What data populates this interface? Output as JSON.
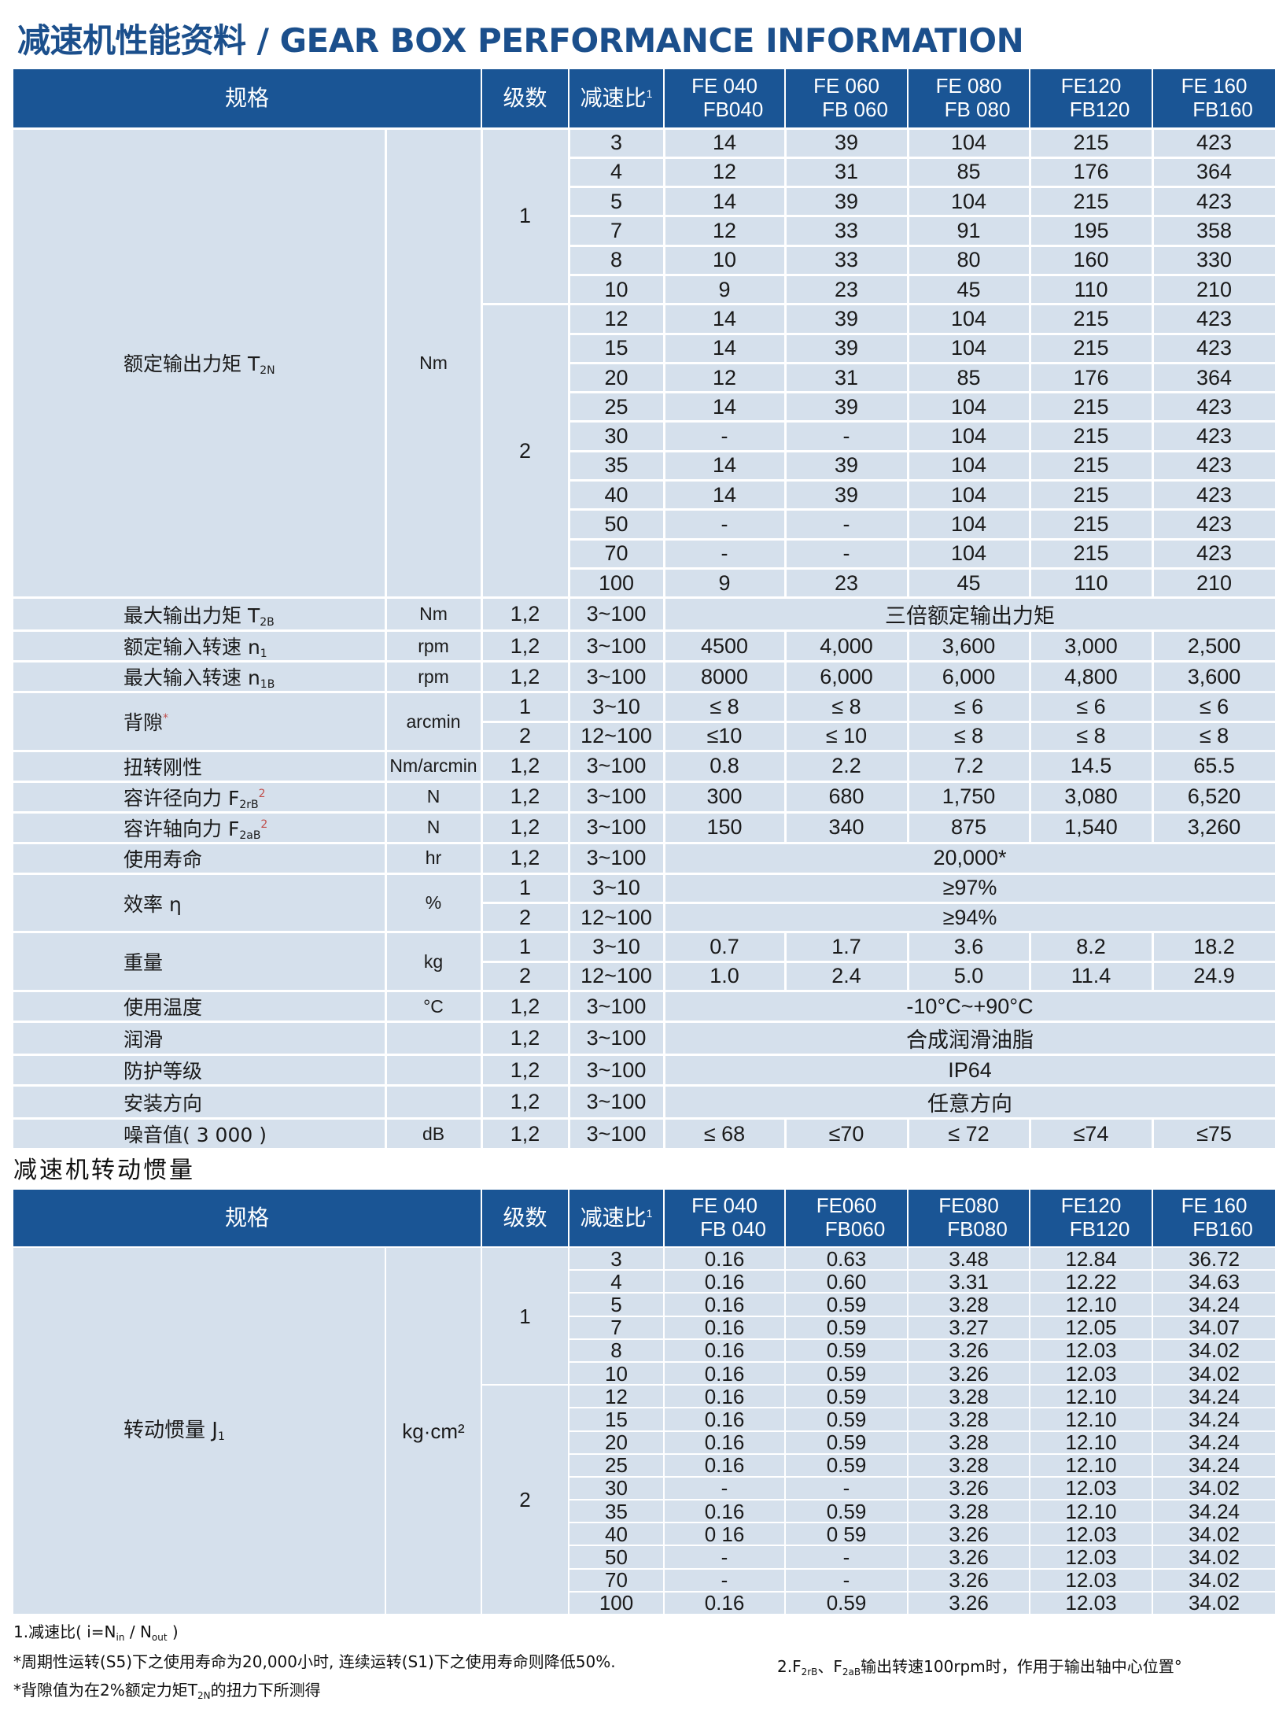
{
  "title": "减速机性能资料 / GEAR BOX PERFORMANCE INFORMATION",
  "colors": {
    "header_bg": "#1a5595",
    "cell_bg": "#d5e0ec",
    "title": "#1b4f8c",
    "stage_divider": "#d0343a"
  },
  "table1": {
    "headers": {
      "spec": "规格",
      "stage": "级数",
      "ratio": "减速比",
      "ratio_sup": "1",
      "models": [
        [
          "FE 040",
          "FB040"
        ],
        [
          "FE 060",
          "FB 060"
        ],
        [
          "FE 080",
          "FB 080"
        ],
        [
          "FE120",
          "FB120"
        ],
        [
          "FE 160",
          "FB160"
        ]
      ]
    },
    "torque": {
      "label": "额定输出力矩 T",
      "sub": "2N",
      "unit": "Nm",
      "stages": [
        {
          "stage": "1",
          "rows": [
            {
              "ratio": "3",
              "values": [
                "14",
                "39",
                "104",
                "215",
                "423"
              ]
            },
            {
              "ratio": "4",
              "values": [
                "12",
                "31",
                "85",
                "176",
                "364"
              ]
            },
            {
              "ratio": "5",
              "values": [
                "14",
                "39",
                "104",
                "215",
                "423"
              ]
            },
            {
              "ratio": "7",
              "values": [
                "12",
                "33",
                "91",
                "195",
                "358"
              ]
            },
            {
              "ratio": "8",
              "values": [
                "10",
                "33",
                "80",
                "160",
                "330"
              ]
            },
            {
              "ratio": "10",
              "values": [
                "9",
                "23",
                "45",
                "110",
                "210"
              ]
            }
          ]
        },
        {
          "stage": "2",
          "rows": [
            {
              "ratio": "12",
              "values": [
                "14",
                "39",
                "104",
                "215",
                "423"
              ]
            },
            {
              "ratio": "15",
              "values": [
                "14",
                "39",
                "104",
                "215",
                "423"
              ]
            },
            {
              "ratio": "20",
              "values": [
                "12",
                "31",
                "85",
                "176",
                "364"
              ]
            },
            {
              "ratio": "25",
              "values": [
                "14",
                "39",
                "104",
                "215",
                "423"
              ]
            },
            {
              "ratio": "30",
              "values": [
                "-",
                "-",
                "104",
                "215",
                "423"
              ]
            },
            {
              "ratio": "35",
              "values": [
                "14",
                "39",
                "104",
                "215",
                "423"
              ]
            },
            {
              "ratio": "40",
              "values": [
                "14",
                "39",
                "104",
                "215",
                "423"
              ]
            },
            {
              "ratio": "50",
              "values": [
                "-",
                "-",
                "104",
                "215",
                "423"
              ]
            },
            {
              "ratio": "70",
              "values": [
                "-",
                "-",
                "104",
                "215",
                "423"
              ]
            },
            {
              "ratio": "100",
              "values": [
                "9",
                "23",
                "45",
                "110",
                "210"
              ]
            }
          ]
        }
      ]
    },
    "specs": [
      {
        "label": "最大输出力矩 T",
        "sub": "2B",
        "unit": "Nm",
        "rows": [
          {
            "stage": "1,2",
            "ratio": "3~100",
            "span": "三倍额定输出力矩"
          }
        ]
      },
      {
        "label": "额定输入转速 n",
        "sub": "1",
        "unit": "rpm",
        "rows": [
          {
            "stage": "1,2",
            "ratio": "3~100",
            "values": [
              "4500",
              "4,000",
              "3,600",
              "3,000",
              "2,500"
            ]
          }
        ]
      },
      {
        "label": "最大输入转速 n",
        "sub": "1B",
        "unit": "rpm",
        "rows": [
          {
            "stage": "1,2",
            "ratio": "3~100",
            "values": [
              "8000",
              "6,000",
              "6,000",
              "4,800",
              "3,600"
            ]
          }
        ]
      },
      {
        "label": "背隙",
        "star": "*",
        "unit": "arcmin",
        "rows": [
          {
            "stage": "1",
            "ratio": "3~10",
            "values": [
              "≤ 8",
              "≤ 8",
              "≤ 6",
              "≤ 6",
              "≤ 6"
            ]
          },
          {
            "stage": "2",
            "ratio": "12~100",
            "values": [
              "≤10",
              "≤ 10",
              "≤ 8",
              "≤ 8",
              "≤ 8"
            ]
          }
        ]
      },
      {
        "label": "扭转刚性",
        "unit": "Nm/arcmin",
        "rows": [
          {
            "stage": "1,2",
            "ratio": "3~100",
            "values": [
              "0.8",
              "2.2",
              "7.2",
              "14.5",
              "65.5"
            ]
          }
        ]
      },
      {
        "label": "容许径向力 F",
        "sub": "2rB",
        "sup": "2",
        "unit": "N",
        "rows": [
          {
            "stage": "1,2",
            "ratio": "3~100",
            "values": [
              "300",
              "680",
              "1,750",
              "3,080",
              "6,520"
            ]
          }
        ]
      },
      {
        "label": "容许轴向力 F",
        "sub": "2aB",
        "sup": "2",
        "unit": "N",
        "rows": [
          {
            "stage": "1,2",
            "ratio": "3~100",
            "values": [
              "150",
              "340",
              "875",
              "1,540",
              "3,260"
            ]
          }
        ]
      },
      {
        "label": "使用寿命",
        "unit": "hr",
        "rows": [
          {
            "stage": "1,2",
            "ratio": "3~100",
            "span": "20,000*"
          }
        ]
      },
      {
        "label": "效率 η",
        "unit": "%",
        "rows": [
          {
            "stage": "1",
            "ratio": "3~10",
            "span": "≥97%"
          },
          {
            "stage": "2",
            "ratio": "12~100",
            "span": "≥94%"
          }
        ]
      },
      {
        "label": "重量",
        "unit": "kg",
        "rows": [
          {
            "stage": "1",
            "ratio": "3~10",
            "values": [
              "0.7",
              "1.7",
              "3.6",
              "8.2",
              "18.2"
            ]
          },
          {
            "stage": "2",
            "ratio": "12~100",
            "values": [
              "1.0",
              "2.4",
              "5.0",
              "11.4",
              "24.9"
            ]
          }
        ]
      },
      {
        "label": "使用温度",
        "unit": "°C",
        "rows": [
          {
            "stage": "1,2",
            "ratio": "3~100",
            "span": "-10°C~+90°C"
          }
        ]
      },
      {
        "label": "润滑",
        "unit": "",
        "rows": [
          {
            "stage": "1,2",
            "ratio": "3~100",
            "span": "合成润滑油脂"
          }
        ]
      },
      {
        "label": "防护等级",
        "unit": "",
        "rows": [
          {
            "stage": "1,2",
            "ratio": "3~100",
            "span": "IP64"
          }
        ]
      },
      {
        "label": "安装方向",
        "unit": "",
        "rows": [
          {
            "stage": "1,2",
            "ratio": "3~100",
            "span": "任意方向"
          }
        ]
      },
      {
        "label": "噪音值(    3 000      )",
        "unit": "dB",
        "rows": [
          {
            "stage": "1,2",
            "ratio": "3~100",
            "values": [
              "≤ 68",
              "≤70",
              "≤ 72",
              "≤74",
              "≤75"
            ]
          }
        ]
      }
    ]
  },
  "section2_title": "减速机转动惯量",
  "table2": {
    "headers": {
      "spec": "规格",
      "stage": "级数",
      "ratio": "减速比",
      "ratio_sup": "1",
      "models": [
        [
          "FE 040",
          "FB 040"
        ],
        [
          "FE060",
          "FB060"
        ],
        [
          "FE080",
          "FB080"
        ],
        [
          "FE120",
          "FB120"
        ],
        [
          "FE 160",
          "FB160"
        ]
      ]
    },
    "inertia": {
      "label": "转动惯量 J",
      "sub": "1",
      "unit": "kg·cm²",
      "stages": [
        {
          "stage": "1",
          "rows": [
            {
              "ratio": "3",
              "values": [
                "0.16",
                "0.63",
                "3.48",
                "12.84",
                "36.72"
              ]
            },
            {
              "ratio": "4",
              "values": [
                "0.16",
                "0.60",
                "3.31",
                "12.22",
                "34.63"
              ]
            },
            {
              "ratio": "5",
              "values": [
                "0.16",
                "0.59",
                "3.28",
                "12.10",
                "34.24"
              ]
            },
            {
              "ratio": "7",
              "values": [
                "0.16",
                "0.59",
                "3.27",
                "12.05",
                "34.07"
              ]
            },
            {
              "ratio": "8",
              "values": [
                "0.16",
                "0.59",
                "3.26",
                "12.03",
                "34.02"
              ]
            },
            {
              "ratio": "10",
              "values": [
                "0.16",
                "0.59",
                "3.26",
                "12.03",
                "34.02"
              ]
            }
          ]
        },
        {
          "stage": "2",
          "rows": [
            {
              "ratio": "12",
              "values": [
                "0.16",
                "0.59",
                "3.28",
                "12.10",
                "34.24"
              ]
            },
            {
              "ratio": "15",
              "values": [
                "0.16",
                "0.59",
                "3.28",
                "12.10",
                "34.24"
              ]
            },
            {
              "ratio": "20",
              "values": [
                "0.16",
                "0.59",
                "3.28",
                "12.10",
                "34.24"
              ]
            },
            {
              "ratio": "25",
              "values": [
                "0.16",
                "0.59",
                "3.28",
                "12.10",
                "34.24"
              ]
            },
            {
              "ratio": "30",
              "values": [
                "-",
                "-",
                "3.26",
                "12.03",
                "34.02"
              ]
            },
            {
              "ratio": "35",
              "values": [
                "0.16",
                "0.59",
                "3.28",
                "12.10",
                "34.24"
              ]
            },
            {
              "ratio": "40",
              "values": [
                "0 16",
                "0 59",
                "3.26",
                "12.03",
                "34.02"
              ]
            },
            {
              "ratio": "50",
              "values": [
                "-",
                "-",
                "3.26",
                "12.03",
                "34.02"
              ]
            },
            {
              "ratio": "70",
              "values": [
                "-",
                "-",
                "3.26",
                "12.03",
                "34.02"
              ]
            },
            {
              "ratio": "100",
              "values": [
                "0.16",
                "0.59",
                "3.26",
                "12.03",
                "34.02"
              ]
            }
          ]
        }
      ]
    }
  },
  "footnotes": [
    [
      {
        "t": "1.减速比( i=N"
      },
      {
        "t": "in",
        "sub": true
      },
      {
        "t": " / N"
      },
      {
        "t": "out",
        "sub": true
      },
      {
        "t": " )"
      }
    ],
    [
      {
        "t": "*周期性运转(S5)下之使用寿命为20,000小时, 连续运转(S1)下之使用寿命则降低50%."
      }
    ],
    [
      {
        "t": "2.F"
      },
      {
        "t": "2rB",
        "sub": true
      },
      {
        "t": "、F"
      },
      {
        "t": "2aB",
        "sub": true
      },
      {
        "t": "输出转速100rpm时，作用于输出轴中心位置°"
      }
    ],
    [
      {
        "t": "*背隙值为在2%额定力矩T"
      },
      {
        "t": "2N",
        "sub": true
      },
      {
        "t": "的扭力下所测得"
      }
    ]
  ]
}
